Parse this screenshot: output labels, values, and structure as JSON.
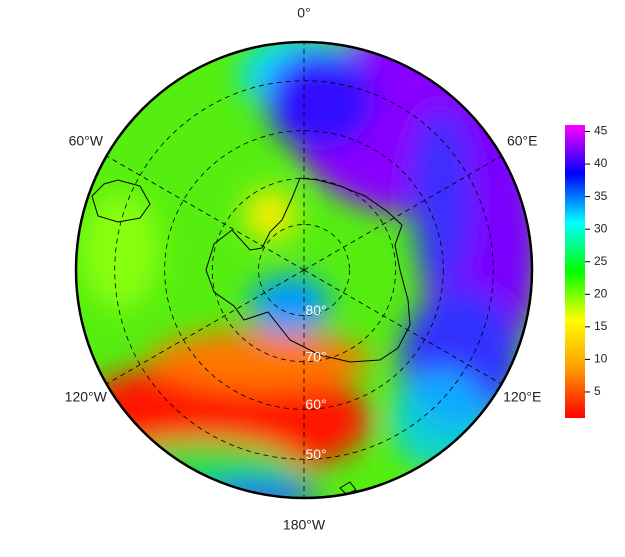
{
  "map": {
    "longitude_labels": [
      {
        "value": 0,
        "label": "0°"
      },
      {
        "value": 60,
        "label": "60°E"
      },
      {
        "value": 120,
        "label": "120°E"
      },
      {
        "value": 180,
        "label": "180°W"
      },
      {
        "value": -120,
        "label": "120°W"
      },
      {
        "value": -60,
        "label": "60°W"
      }
    ],
    "latitude_labels": [
      {
        "value": -80,
        "label": "80°"
      },
      {
        "value": -70,
        "label": "70°"
      },
      {
        "value": -60,
        "label": "60°"
      },
      {
        "value": -50,
        "label": "50°"
      }
    ]
  },
  "colorbar": {
    "type": "colorbar",
    "clim": [
      1,
      46
    ],
    "ticks": [
      5,
      10,
      15,
      20,
      25,
      30,
      35,
      40,
      45
    ],
    "colors": [
      "#ff0000",
      "#ff9900",
      "#ffff00",
      "#00ff00",
      "#00ffff",
      "#0000ff",
      "#ff00ff"
    ]
  }
}
